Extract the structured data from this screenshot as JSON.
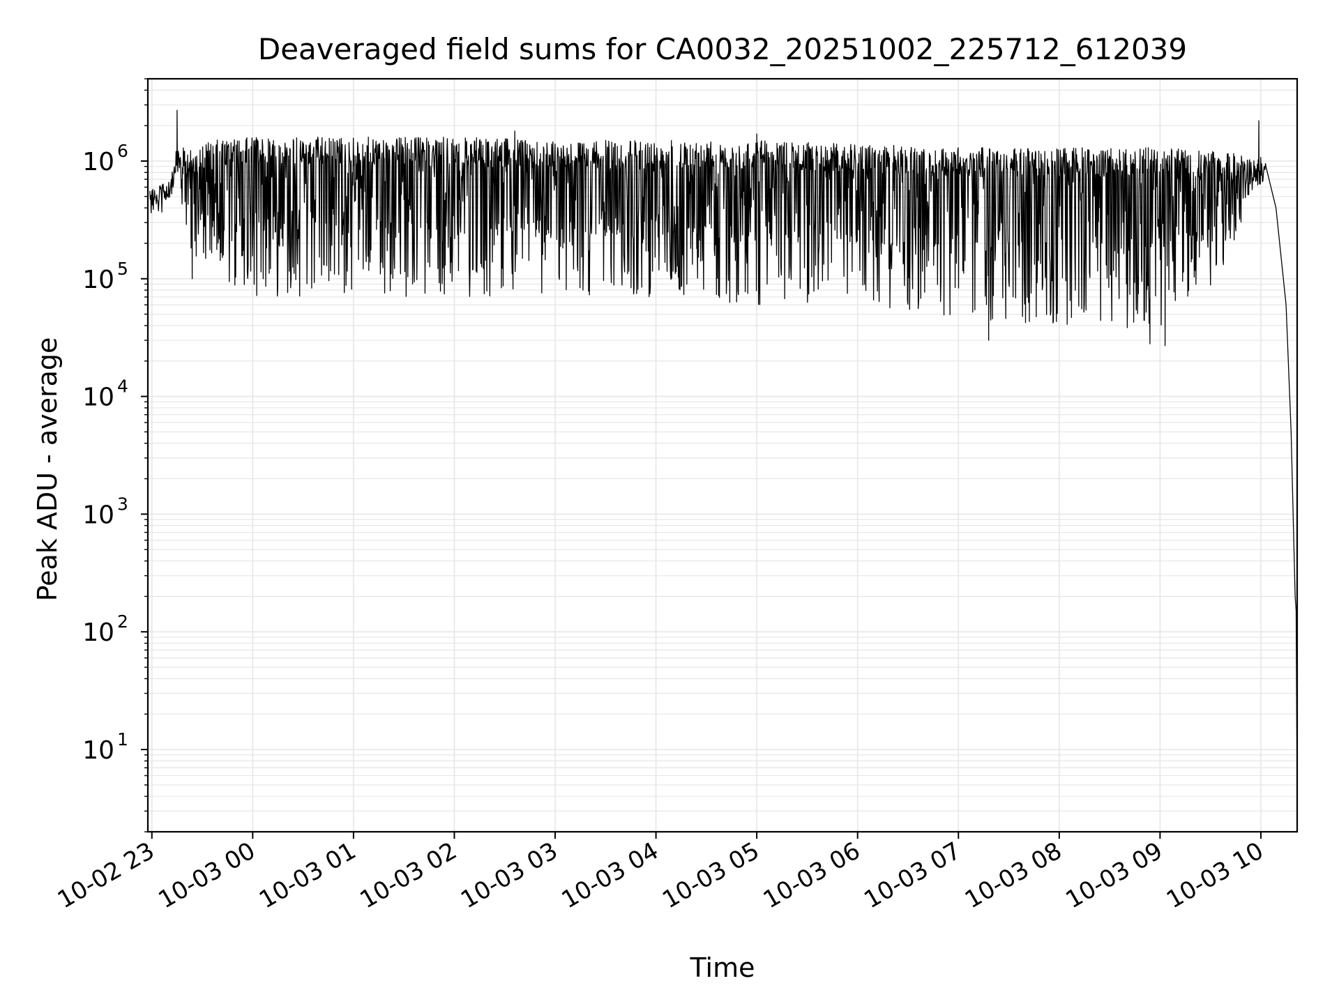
{
  "chart_data": {
    "type": "line",
    "title": "Deaveraged field sums for CA0032_20251002_225712_612039",
    "xlabel": "Time",
    "ylabel": "Peak ADU - average",
    "yscale": "log",
    "ylim": [
      2,
      5000000
    ],
    "xlim_hours": [
      -0.04,
      11.36
    ],
    "grid": true,
    "line_color": "#000000",
    "grid_color": "#e6e6e6",
    "x_ticks": [
      {
        "h": 0,
        "label": "10-02 23"
      },
      {
        "h": 1,
        "label": "10-03 00"
      },
      {
        "h": 2,
        "label": "10-03 01"
      },
      {
        "h": 3,
        "label": "10-03 02"
      },
      {
        "h": 4,
        "label": "10-03 03"
      },
      {
        "h": 5,
        "label": "10-03 04"
      },
      {
        "h": 6,
        "label": "10-03 05"
      },
      {
        "h": 7,
        "label": "10-03 06"
      },
      {
        "h": 8,
        "label": "10-03 07"
      },
      {
        "h": 9,
        "label": "10-03 08"
      },
      {
        "h": 10,
        "label": "10-03 09"
      },
      {
        "h": 11,
        "label": "10-03 10"
      }
    ],
    "y_ticks": [
      {
        "exp": 1,
        "base": "10",
        "sup": "1"
      },
      {
        "exp": 2,
        "base": "10",
        "sup": "2"
      },
      {
        "exp": 3,
        "base": "10",
        "sup": "3"
      },
      {
        "exp": 4,
        "base": "10",
        "sup": "4"
      },
      {
        "exp": 5,
        "base": "10",
        "sup": "5"
      },
      {
        "exp": 6,
        "base": "10",
        "sup": "6"
      }
    ],
    "series": [
      {
        "name": "deaveraged field sum",
        "envelope": [
          {
            "h": -0.02,
            "upper": 600000,
            "lower": 400000
          },
          {
            "h": 0.15,
            "upper": 650000,
            "lower": 450000
          },
          {
            "h": 0.25,
            "upper": 1300000,
            "lower": 600000
          },
          {
            "h": 0.35,
            "upper": 1300000,
            "lower": 200000
          },
          {
            "h": 0.6,
            "upper": 1500000,
            "lower": 90000
          },
          {
            "h": 1.0,
            "upper": 1600000,
            "lower": 70000
          },
          {
            "h": 2.0,
            "upper": 1600000,
            "lower": 70000
          },
          {
            "h": 3.0,
            "upper": 1600000,
            "lower": 70000
          },
          {
            "h": 4.0,
            "upper": 1500000,
            "lower": 70000
          },
          {
            "h": 5.0,
            "upper": 1500000,
            "lower": 70000
          },
          {
            "h": 6.0,
            "upper": 1500000,
            "lower": 60000
          },
          {
            "h": 7.0,
            "upper": 1400000,
            "lower": 55000
          },
          {
            "h": 8.0,
            "upper": 1300000,
            "lower": 45000
          },
          {
            "h": 9.0,
            "upper": 1300000,
            "lower": 38000
          },
          {
            "h": 10.0,
            "upper": 1300000,
            "lower": 38000
          },
          {
            "h": 10.6,
            "upper": 1200000,
            "lower": 100000
          },
          {
            "h": 10.95,
            "upper": 1100000,
            "lower": 600000
          },
          {
            "h": 11.05,
            "upper": 1100000,
            "lower": 700000
          }
        ],
        "spikes": [
          {
            "h": 0.25,
            "value": 2700000
          },
          {
            "h": 10.98,
            "value": 2200000
          },
          {
            "h": 6.0,
            "value": 1700000
          },
          {
            "h": 3.6,
            "value": 1800000
          }
        ],
        "dips": [
          {
            "h": 0.4,
            "value": 100000
          },
          {
            "h": 8.3,
            "value": 30000
          },
          {
            "h": 9.9,
            "value": 28000
          },
          {
            "h": 10.05,
            "value": 27000
          }
        ],
        "tail": [
          {
            "h": 11.05,
            "value": 900000
          },
          {
            "h": 11.15,
            "value": 400000
          },
          {
            "h": 11.25,
            "value": 60000
          },
          {
            "h": 11.3,
            "value": 5000
          },
          {
            "h": 11.34,
            "value": 200
          },
          {
            "h": 11.35,
            "value": 150
          },
          {
            "h": 11.36,
            "value": 4
          }
        ]
      }
    ]
  }
}
